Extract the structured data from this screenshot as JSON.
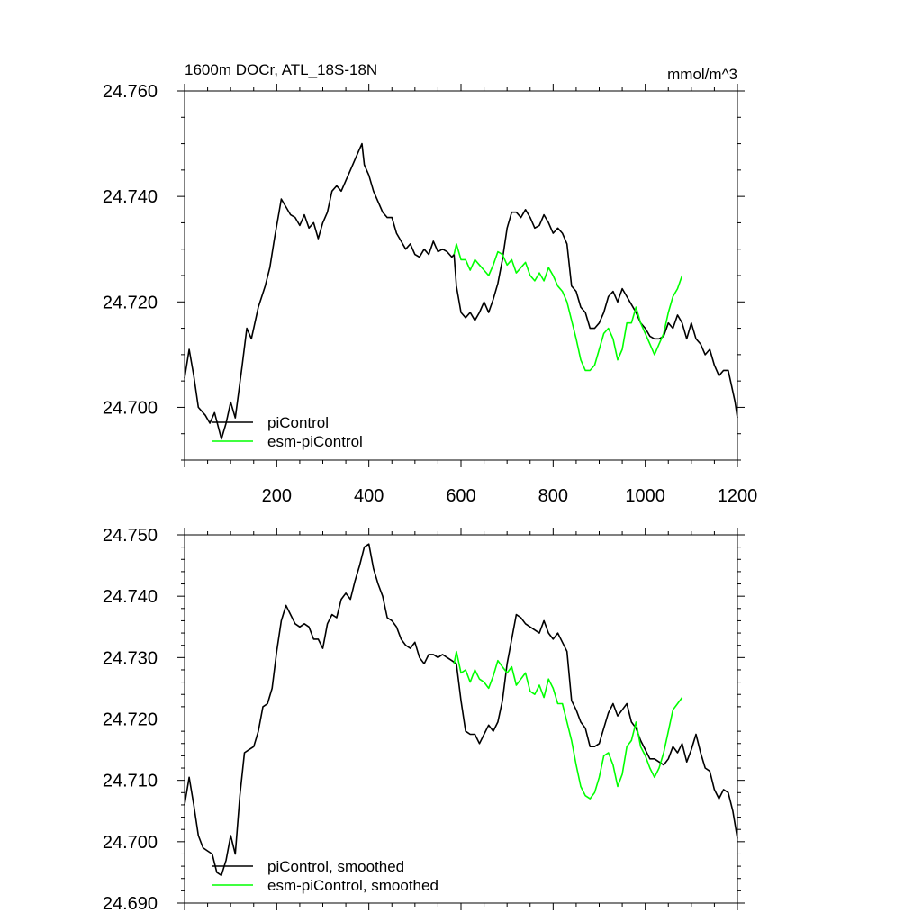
{
  "chart_data": [
    {
      "type": "line",
      "title": "1600m DOCr, ATL_18S-18N",
      "units": "mmol/m^3",
      "xlim": [
        0,
        1200
      ],
      "ylim": [
        24.69,
        24.76
      ],
      "x_ticks": [
        200,
        400,
        600,
        800,
        1000,
        1200
      ],
      "x_tick_labels": [
        "200",
        "400",
        "600",
        "800",
        "1000",
        "1200"
      ],
      "y_ticks": [
        24.7,
        24.72,
        24.74,
        24.76
      ],
      "y_tick_labels": [
        "24.700",
        "24.720",
        "24.740",
        "24.760"
      ],
      "legend_position": "bottom-left",
      "series": [
        {
          "name": "piControl",
          "color": "#000000",
          "x": [
            0,
            10,
            20,
            30,
            45,
            55,
            65,
            80,
            90,
            100,
            110,
            125,
            135,
            145,
            160,
            175,
            185,
            195,
            205,
            210,
            220,
            230,
            240,
            250,
            260,
            270,
            280,
            290,
            300,
            310,
            320,
            330,
            340,
            350,
            360,
            370,
            380,
            385,
            390,
            400,
            410,
            420,
            430,
            440,
            450,
            460,
            470,
            480,
            490,
            500,
            510,
            520,
            530,
            540,
            550,
            560,
            570,
            580,
            585,
            590,
            600,
            610,
            620,
            630,
            640,
            650,
            660,
            670,
            680,
            690,
            700,
            710,
            720,
            730,
            740,
            750,
            760,
            770,
            780,
            790,
            800,
            810,
            820,
            830,
            840,
            850,
            860,
            870,
            880,
            890,
            900,
            910,
            920,
            930,
            940,
            950,
            960,
            970,
            980,
            990,
            1000,
            1010,
            1020,
            1030,
            1040,
            1050,
            1060,
            1070,
            1080,
            1090,
            1100,
            1110,
            1120,
            1130,
            1140,
            1150,
            1160,
            1170,
            1180,
            1190,
            1195,
            1200
          ],
          "y": [
            24.7055,
            24.711,
            24.706,
            24.7,
            24.6985,
            24.697,
            24.699,
            24.694,
            24.697,
            24.701,
            24.698,
            24.708,
            24.715,
            24.713,
            24.719,
            24.723,
            24.7265,
            24.732,
            24.737,
            24.7395,
            24.738,
            24.7365,
            24.736,
            24.7345,
            24.7365,
            24.734,
            24.735,
            24.732,
            24.735,
            24.737,
            24.741,
            24.742,
            24.741,
            24.743,
            24.745,
            24.747,
            24.749,
            24.75,
            24.746,
            24.744,
            24.741,
            24.739,
            24.737,
            24.736,
            24.736,
            24.733,
            24.7315,
            24.73,
            24.731,
            24.729,
            24.7285,
            24.73,
            24.729,
            24.7315,
            24.7295,
            24.73,
            24.7295,
            24.7285,
            24.729,
            24.723,
            24.718,
            24.717,
            24.718,
            24.7165,
            24.718,
            24.72,
            24.718,
            24.7205,
            24.7235,
            24.728,
            24.734,
            24.737,
            24.737,
            24.736,
            24.7375,
            24.736,
            24.734,
            24.7345,
            24.7365,
            24.735,
            24.733,
            24.734,
            24.733,
            24.731,
            24.723,
            24.722,
            24.719,
            24.718,
            24.715,
            24.715,
            24.716,
            24.718,
            24.721,
            24.722,
            24.72,
            24.7225,
            24.721,
            24.7195,
            24.718,
            24.716,
            24.715,
            24.7135,
            24.713,
            24.713,
            24.7135,
            24.716,
            24.715,
            24.7175,
            24.716,
            24.713,
            24.716,
            24.713,
            24.712,
            24.71,
            24.711,
            24.708,
            24.706,
            24.707,
            24.707,
            24.703,
            24.701,
            24.698
          ]
        },
        {
          "name": "esm-piControl",
          "color": "#00ff00",
          "x": [
            585,
            590,
            600,
            610,
            620,
            630,
            640,
            650,
            660,
            670,
            680,
            690,
            700,
            710,
            720,
            730,
            740,
            750,
            760,
            770,
            780,
            790,
            800,
            810,
            820,
            830,
            840,
            850,
            860,
            870,
            880,
            890,
            900,
            910,
            920,
            930,
            940,
            950,
            960,
            970,
            980,
            990,
            1000,
            1010,
            1020,
            1030,
            1040,
            1050,
            1060,
            1070,
            1080
          ],
          "y": [
            24.729,
            24.731,
            24.728,
            24.728,
            24.726,
            24.728,
            24.727,
            24.726,
            24.725,
            24.727,
            24.7295,
            24.729,
            24.727,
            24.728,
            24.7255,
            24.7265,
            24.7275,
            24.725,
            24.724,
            24.7255,
            24.724,
            24.7265,
            24.725,
            24.723,
            24.722,
            24.72,
            24.7165,
            24.713,
            24.709,
            24.707,
            24.707,
            24.708,
            24.711,
            24.714,
            24.715,
            24.713,
            24.709,
            24.711,
            24.716,
            24.716,
            24.719,
            24.716,
            24.714,
            24.712,
            24.71,
            24.712,
            24.714,
            24.718,
            24.721,
            24.7225,
            24.725
          ]
        }
      ]
    },
    {
      "type": "line",
      "title": "",
      "xlim": [
        0,
        1200
      ],
      "ylim": [
        24.69,
        24.75
      ],
      "y_ticks": [
        24.69,
        24.7,
        24.71,
        24.72,
        24.73,
        24.74,
        24.75
      ],
      "y_tick_labels": [
        "24.690",
        "24.700",
        "24.710",
        "24.720",
        "24.730",
        "24.740",
        "24.750"
      ],
      "legend_position": "bottom-left",
      "series": [
        {
          "name": "piControl, smoothed",
          "color": "#000000",
          "x": [
            0,
            10,
            20,
            30,
            40,
            50,
            60,
            70,
            80,
            90,
            100,
            110,
            120,
            130,
            140,
            150,
            160,
            170,
            180,
            190,
            200,
            210,
            220,
            230,
            240,
            250,
            260,
            270,
            280,
            290,
            300,
            310,
            320,
            330,
            340,
            350,
            360,
            370,
            380,
            390,
            400,
            410,
            420,
            430,
            440,
            450,
            460,
            470,
            480,
            490,
            500,
            510,
            520,
            530,
            540,
            550,
            560,
            570,
            580,
            590,
            600,
            610,
            620,
            630,
            640,
            650,
            660,
            670,
            680,
            690,
            700,
            710,
            720,
            730,
            740,
            750,
            760,
            770,
            780,
            790,
            800,
            810,
            820,
            830,
            840,
            850,
            860,
            870,
            880,
            890,
            900,
            910,
            920,
            930,
            940,
            950,
            960,
            970,
            980,
            990,
            1000,
            1010,
            1020,
            1030,
            1040,
            1050,
            1060,
            1070,
            1080,
            1090,
            1100,
            1110,
            1120,
            1130,
            1140,
            1150,
            1160,
            1170,
            1180,
            1190,
            1200
          ],
          "y": [
            24.706,
            24.7105,
            24.706,
            24.701,
            24.699,
            24.6985,
            24.698,
            24.695,
            24.6945,
            24.697,
            24.701,
            24.698,
            24.7075,
            24.7145,
            24.715,
            24.7155,
            24.718,
            24.722,
            24.7225,
            24.725,
            24.731,
            24.736,
            24.7385,
            24.737,
            24.7355,
            24.735,
            24.7355,
            24.735,
            24.733,
            24.733,
            24.7315,
            24.7355,
            24.737,
            24.7365,
            24.7395,
            24.7405,
            24.7395,
            24.7425,
            24.745,
            24.748,
            24.7485,
            24.7445,
            24.742,
            24.74,
            24.7365,
            24.736,
            24.735,
            24.733,
            24.732,
            24.7315,
            24.7325,
            24.73,
            24.729,
            24.7305,
            24.7305,
            24.73,
            24.7305,
            24.73,
            24.7295,
            24.729,
            24.723,
            24.718,
            24.7175,
            24.7175,
            24.716,
            24.7175,
            24.719,
            24.718,
            24.7195,
            24.723,
            24.729,
            24.733,
            24.737,
            24.7365,
            24.7355,
            24.735,
            24.7345,
            24.734,
            24.736,
            24.734,
            24.733,
            24.734,
            24.7325,
            24.731,
            24.723,
            24.7215,
            24.7195,
            24.7185,
            24.7155,
            24.7155,
            24.716,
            24.7185,
            24.721,
            24.7225,
            24.7205,
            24.7215,
            24.7225,
            24.7195,
            24.7185,
            24.7165,
            24.715,
            24.7135,
            24.7135,
            24.713,
            24.7125,
            24.7135,
            24.7155,
            24.7145,
            24.716,
            24.713,
            24.715,
            24.7175,
            24.7145,
            24.712,
            24.7115,
            24.7085,
            24.707,
            24.7085,
            24.708,
            24.705,
            24.7005
          ]
        },
        {
          "name": "esm-piControl, smoothed",
          "color": "#00ff00",
          "x": [
            585,
            590,
            600,
            610,
            620,
            630,
            640,
            650,
            660,
            670,
            680,
            690,
            700,
            710,
            720,
            730,
            740,
            750,
            760,
            770,
            780,
            790,
            800,
            810,
            820,
            830,
            840,
            850,
            860,
            870,
            880,
            890,
            900,
            910,
            920,
            930,
            940,
            950,
            960,
            970,
            980,
            990,
            1000,
            1010,
            1020,
            1030,
            1040,
            1050,
            1060,
            1070,
            1080
          ],
          "y": [
            24.729,
            24.731,
            24.7275,
            24.728,
            24.726,
            24.728,
            24.7265,
            24.726,
            24.725,
            24.727,
            24.7295,
            24.7285,
            24.7275,
            24.7285,
            24.7255,
            24.7265,
            24.7275,
            24.7245,
            24.724,
            24.7255,
            24.7235,
            24.7265,
            24.725,
            24.7225,
            24.7225,
            24.7195,
            24.7165,
            24.7125,
            24.709,
            24.7075,
            24.707,
            24.708,
            24.7105,
            24.714,
            24.7145,
            24.7125,
            24.709,
            24.711,
            24.7155,
            24.7165,
            24.7195,
            24.7155,
            24.714,
            24.712,
            24.7105,
            24.712,
            24.7145,
            24.718,
            24.7215,
            24.7225,
            24.7235
          ]
        }
      ]
    }
  ]
}
